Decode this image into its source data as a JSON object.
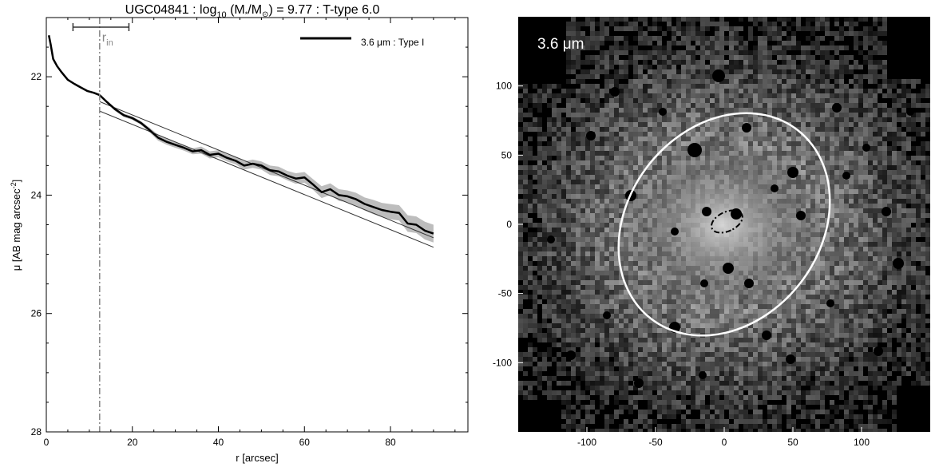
{
  "chart_data": [
    {
      "type": "line",
      "title_main": "UGC04841 : log",
      "title_sub": "10",
      "title_paren_open": " (M",
      "title_star": "*",
      "title_over": "/M",
      "title_sun": "⊙",
      "title_rest": ") = 9.77 : T-type 6.0",
      "xlabel": "r [arcsec]",
      "ylabel_main": "μ [AB mag arcsec",
      "ylabel_sup": "-2",
      "ylabel_close": "]",
      "xlim": [
        0,
        98
      ],
      "ylim": [
        28,
        21
      ],
      "y_inverted": true,
      "x_ticks": [
        0,
        20,
        40,
        60,
        80
      ],
      "x_tick_labels": [
        "0",
        "20",
        "40",
        "60",
        "80"
      ],
      "y_ticks": [
        22,
        24,
        26,
        28
      ],
      "y_tick_labels": [
        "22",
        "24",
        "26",
        "28"
      ],
      "legend": {
        "label": "3.6 μm : Type I",
        "position": "top-right"
      },
      "rin_label": "r",
      "rin_sub": "in",
      "rin_value": 12.4,
      "rin_bar": [
        6.2,
        19.2
      ],
      "profile": {
        "name": "3.6 μm : Type I",
        "x": [
          0.6,
          1,
          1.6,
          2.5,
          3.5,
          5,
          6.5,
          8,
          9.5,
          11,
          12.4,
          14,
          16,
          18,
          20,
          22,
          24,
          26,
          28,
          30,
          32,
          34,
          36,
          38,
          40,
          42,
          44,
          46,
          48,
          50,
          52,
          54,
          56,
          58,
          60,
          62,
          64,
          66,
          68,
          70,
          72,
          74,
          76,
          78,
          80,
          82,
          84,
          86,
          88,
          90
        ],
        "y": [
          21.3,
          21.45,
          21.7,
          21.82,
          21.92,
          22.05,
          22.12,
          22.18,
          22.24,
          22.27,
          22.31,
          22.42,
          22.55,
          22.65,
          22.7,
          22.78,
          22.9,
          23.03,
          23.1,
          23.15,
          23.2,
          23.26,
          23.24,
          23.32,
          23.3,
          23.37,
          23.42,
          23.5,
          23.47,
          23.5,
          23.58,
          23.6,
          23.67,
          23.72,
          23.7,
          23.82,
          23.95,
          23.9,
          24.0,
          24.02,
          24.07,
          24.15,
          24.2,
          24.25,
          24.28,
          24.3,
          24.48,
          24.5,
          24.6,
          24.65
        ],
        "err": [
          0.01,
          0.01,
          0.01,
          0.01,
          0.01,
          0.01,
          0.01,
          0.01,
          0.01,
          0.01,
          0.02,
          0.02,
          0.03,
          0.03,
          0.03,
          0.03,
          0.04,
          0.05,
          0.05,
          0.05,
          0.05,
          0.05,
          0.06,
          0.06,
          0.06,
          0.06,
          0.06,
          0.07,
          0.07,
          0.07,
          0.08,
          0.08,
          0.08,
          0.09,
          0.09,
          0.09,
          0.1,
          0.1,
          0.1,
          0.1,
          0.11,
          0.11,
          0.12,
          0.12,
          0.13,
          0.13,
          0.14,
          0.14,
          0.15,
          0.15
        ]
      },
      "fit_lines": [
        {
          "x": [
            12.4,
            90
          ],
          "y": [
            22.42,
            24.72
          ]
        },
        {
          "x": [
            12.4,
            90
          ],
          "y": [
            22.58,
            24.88
          ]
        }
      ],
      "colors": {
        "profile": "#000000",
        "fit": "#333333",
        "band": "#bdbdbd",
        "rin": "#888888",
        "frame": "#000000"
      }
    },
    {
      "type": "image",
      "band_label": "3.6 μm",
      "xlim": [
        -150,
        150
      ],
      "ylim": [
        -150,
        150
      ],
      "x_ticks": [
        -100,
        -50,
        0,
        50,
        100
      ],
      "x_tick_labels": [
        "-100",
        "-50",
        "0",
        "50",
        "100"
      ],
      "y_ticks": [
        -100,
        -50,
        0,
        50,
        100
      ],
      "y_tick_labels": [
        "-100",
        "-50",
        "0",
        "50",
        "100"
      ],
      "outer_ellipse": {
        "center": [
          0,
          0
        ],
        "semi_major": 87,
        "semi_minor": 70,
        "angle_deg": 38
      },
      "inner_ellipse": {
        "center": [
          2,
          2
        ],
        "semi_major": 12,
        "semi_minor": 7,
        "angle_deg": 65
      },
      "colors": {
        "background": "#000000",
        "outer_ellipse": "#ffffff",
        "inner_ellipse": "#000000",
        "label": "#ffffff"
      }
    }
  ]
}
